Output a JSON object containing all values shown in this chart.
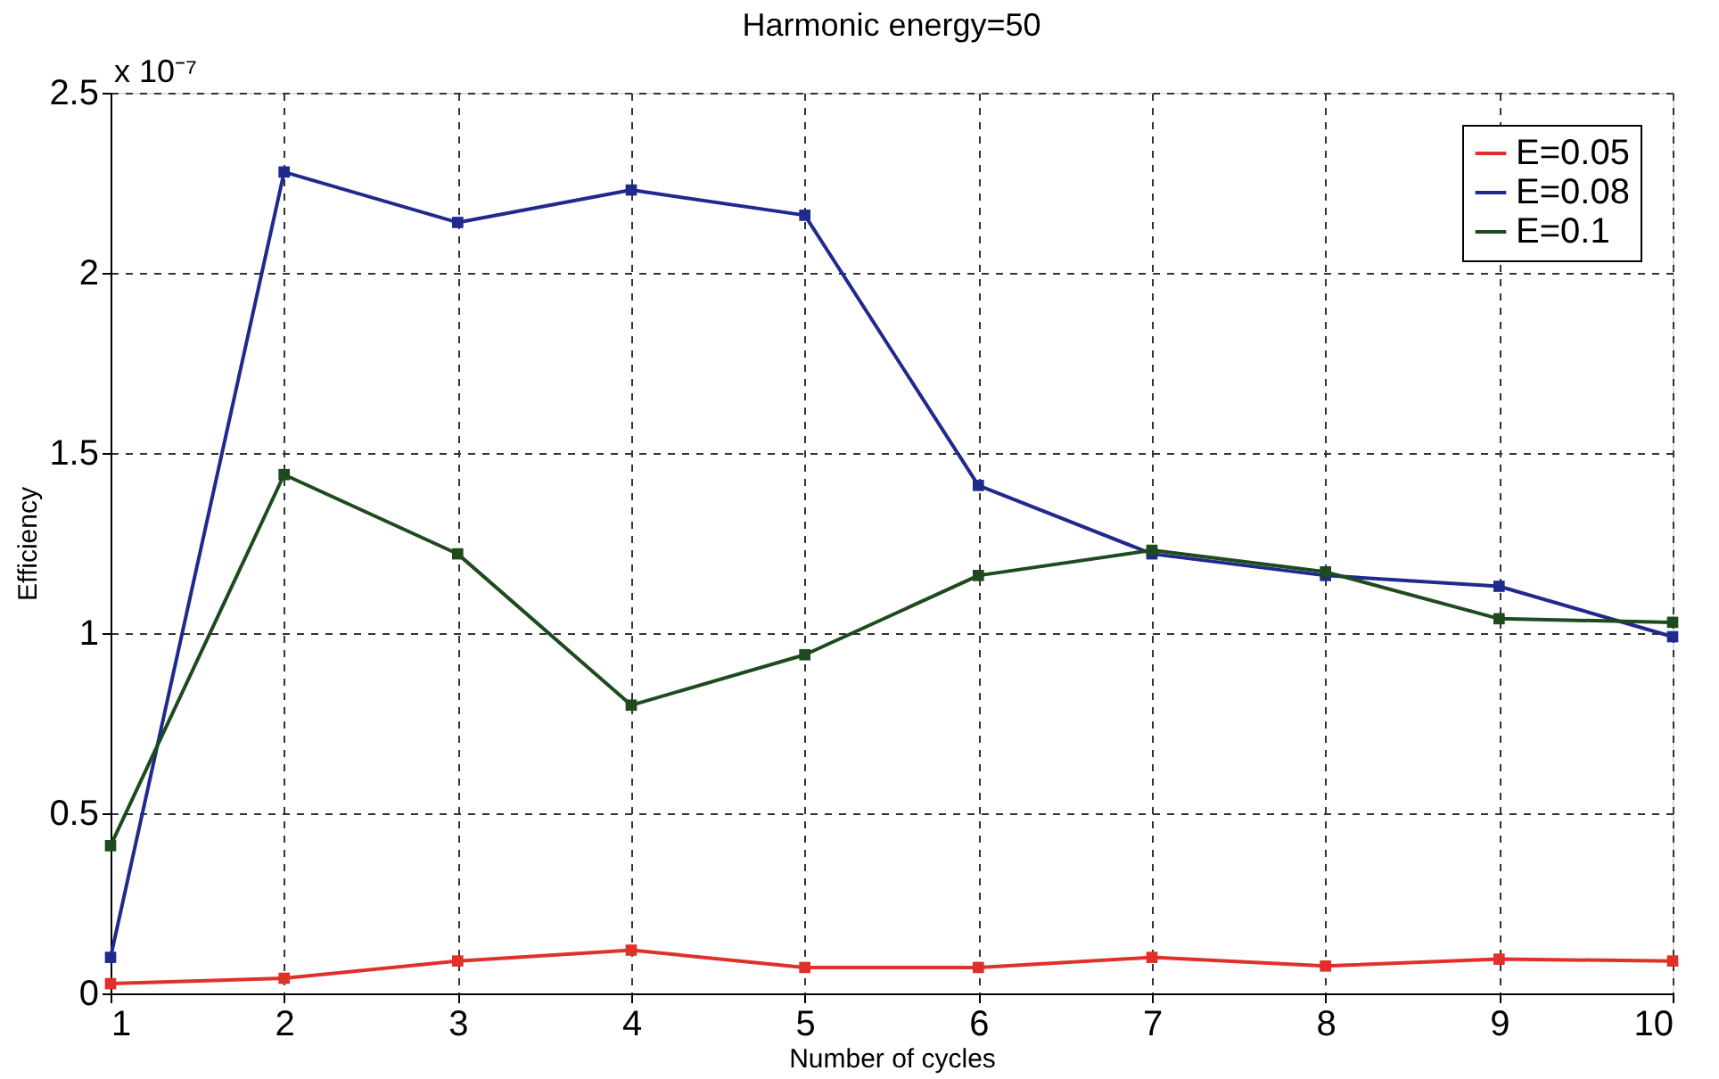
{
  "chart_data": {
    "type": "line",
    "title": "Harmonic energy=50",
    "xlabel": "Number of cycles",
    "ylabel": "Efficiency",
    "annotations": [
      "x 10⁻⁷"
    ],
    "x": [
      1,
      2,
      3,
      4,
      5,
      6,
      7,
      8,
      9,
      10
    ],
    "series": [
      {
        "name": "E=0.05",
        "color": "#e0302a",
        "values": [
          0.027,
          0.042,
          0.09,
          0.12,
          0.072,
          0.072,
          0.1,
          0.076,
          0.095,
          0.09
        ]
      },
      {
        "name": "E=0.08",
        "color": "#1f2a8c",
        "values": [
          0.1,
          2.28,
          2.14,
          2.23,
          2.16,
          1.41,
          1.22,
          1.16,
          1.13,
          0.99
        ]
      },
      {
        "name": "E=0.1",
        "color": "#1e4a1e",
        "values": [
          0.41,
          1.44,
          1.22,
          0.8,
          0.94,
          1.16,
          1.23,
          1.17,
          1.04,
          1.03
        ]
      }
    ],
    "xlim": [
      1,
      10
    ],
    "xticks": [
      1,
      2,
      3,
      4,
      5,
      6,
      7,
      8,
      9,
      10
    ],
    "ylim": [
      0,
      2.5
    ],
    "yticks": [
      0,
      0.5,
      1,
      1.5,
      2,
      2.5
    ],
    "grid": true,
    "legend": "top right",
    "marker": "square",
    "line_style": "solid"
  }
}
